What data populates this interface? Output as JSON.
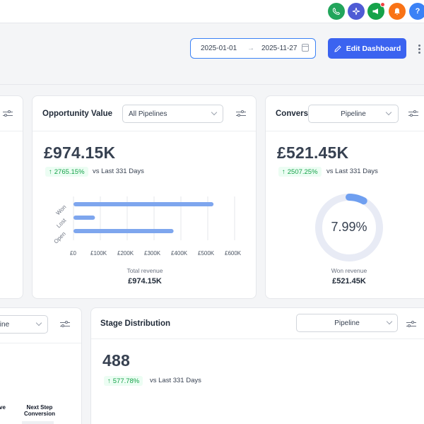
{
  "topbar": {
    "icons": [
      {
        "name": "phone",
        "color": "#22a55b"
      },
      {
        "name": "sparkle",
        "color": "#4f5bd5"
      },
      {
        "name": "megaphone",
        "color": "#16a34a"
      },
      {
        "name": "bell",
        "color": "#f97316"
      },
      {
        "name": "help",
        "color": "#3b82f6"
      }
    ],
    "help_glyph": "?"
  },
  "header": {
    "date_start": "2025-01-01",
    "date_end": "2025-11-27",
    "edit_button": "Edit Dashboard"
  },
  "opportunity_card": {
    "title": "Opportunity Value",
    "filter_value": "All Pipelines",
    "value": "£974.15K",
    "change": "2765.15%",
    "compare": "vs Last 331 Days",
    "total_label": "Total revenue",
    "total_value": "£974.15K"
  },
  "conversion_card": {
    "title": "Convers",
    "filter_value": "Pipeline",
    "value": "£521.45K",
    "change": "2507.25%",
    "compare": "vs Last 331 Days",
    "rate": "7.99%",
    "won_label": "Won revenue",
    "won_value": "£521.45K"
  },
  "stage_card": {
    "title": "Stage Distribution",
    "filter_value": "Pipeline",
    "value": "488",
    "change": "577.78%",
    "compare": "vs Last 331 Days"
  },
  "left_bottom_card": {
    "filter_value": "eline",
    "label_a": "ve",
    "label_b": "Next Step\nConversion"
  },
  "chart_data": {
    "type": "bar",
    "orientation": "horizontal",
    "categories": [
      "Won",
      "Lost",
      "Open"
    ],
    "values": [
      521450,
      80000,
      372700
    ],
    "xlim": [
      0,
      600000
    ],
    "xticks": [
      "£0",
      "£100K",
      "£200K",
      "£300K",
      "£400K",
      "£500K",
      "£600K"
    ],
    "bar_color": "#7ea6ee",
    "grid": true
  },
  "donut": {
    "fraction": 0.0799,
    "track_color": "#e8ebf5",
    "fill_color": "#6f9ff0"
  }
}
